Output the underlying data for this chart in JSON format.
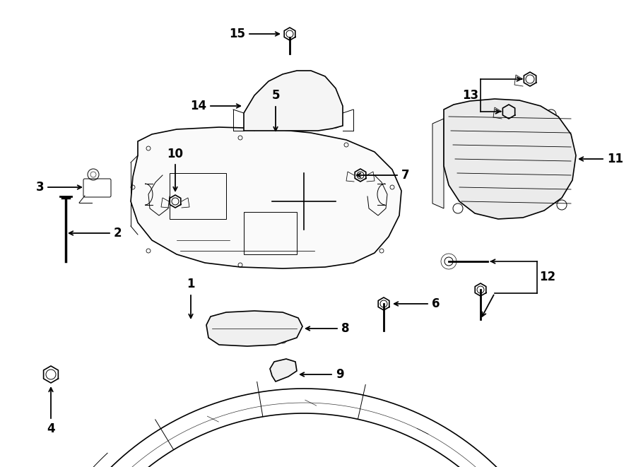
{
  "bg_color": "#ffffff",
  "line_color": "#000000",
  "figsize": [
    9.0,
    6.61
  ],
  "dpi": 100,
  "lw_main": 1.2,
  "lw_detail": 0.7,
  "label_fs": 12
}
